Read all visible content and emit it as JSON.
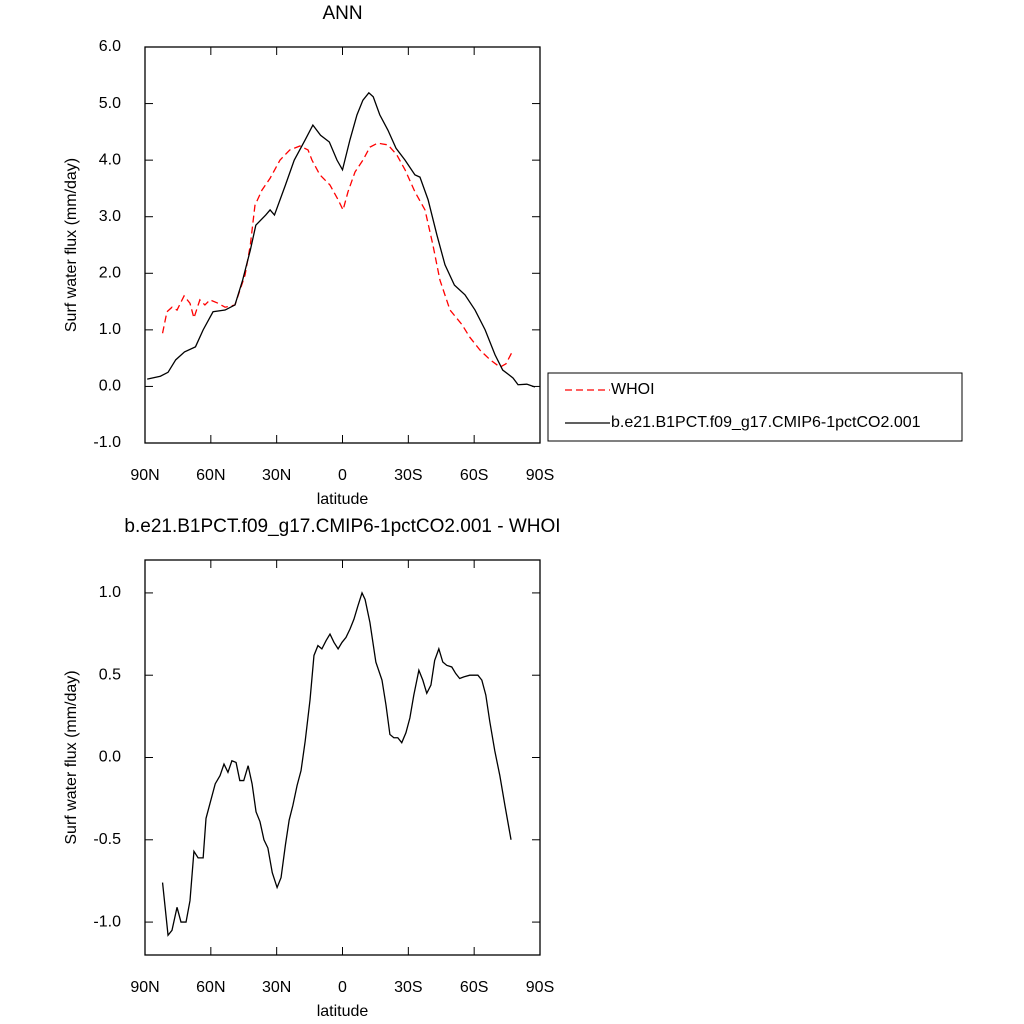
{
  "chart_data": [
    {
      "type": "line",
      "title": "ANN",
      "xlabel": "latitude",
      "ylabel": "Surf water flux (mm/day)",
      "xlim": [
        90,
        -90
      ],
      "xticks": [
        {
          "value": 90,
          "label": "90N"
        },
        {
          "value": 60,
          "label": "60N"
        },
        {
          "value": 30,
          "label": "30N"
        },
        0,
        {
          "value": -30,
          "label": "30S"
        },
        {
          "value": -60,
          "label": "60S"
        },
        {
          "value": -90,
          "label": "90S"
        }
      ],
      "ylim": [
        -1,
        6
      ],
      "yticks": [
        {
          "value": 6,
          "label": "6.0"
        },
        {
          "value": 5,
          "label": "5.0"
        },
        {
          "value": 4,
          "label": "4.0"
        },
        {
          "value": 3,
          "label": "3.0"
        },
        {
          "value": 2,
          "label": "2.0"
        },
        {
          "value": 1,
          "label": "1.0"
        },
        {
          "value": 0,
          "label": "0.0"
        },
        {
          "value": -1,
          "label": "-1.0"
        }
      ],
      "legend": "right",
      "series": [
        {
          "name": "WHOI",
          "color": "#ff0000",
          "dash": "dashed",
          "x": [
            82,
            80,
            77.7,
            75.4,
            72.2,
            69.5,
            67.7,
            65,
            62.7,
            60.4,
            56.7,
            53.5,
            49,
            44.4,
            42,
            39.9,
            36.7,
            33,
            28.5,
            24,
            19.4,
            15.7,
            13.9,
            10.3,
            5.7,
            2,
            -0.25,
            -2.5,
            -5.7,
            -9.3,
            -12.5,
            -16,
            -20.7,
            -24.8,
            -28.5,
            -33,
            -37.6,
            -41.2,
            -44.4,
            -49,
            -54.5,
            -58,
            -62.7,
            -67.3,
            -71.8,
            -74.5,
            -77.3
          ],
          "values": [
            0.94,
            1.32,
            1.4,
            1.35,
            1.6,
            1.47,
            1.21,
            1.53,
            1.44,
            1.53,
            1.47,
            1.4,
            1.44,
            1.97,
            2.5,
            3.2,
            3.47,
            3.68,
            4.0,
            4.18,
            4.25,
            4.18,
            4.0,
            3.74,
            3.56,
            3.3,
            3.12,
            3.44,
            3.79,
            4.0,
            4.23,
            4.3,
            4.27,
            4.09,
            3.83,
            3.44,
            3.12,
            2.5,
            1.88,
            1.35,
            1.09,
            0.87,
            0.64,
            0.47,
            0.34,
            0.4,
            0.61
          ]
        },
        {
          "name": "b.e21.B1PCT.f09_g17.CMIP6-1pctCO2.001",
          "color": "#000000",
          "dash": "solid",
          "x": [
            89,
            83,
            79.5,
            76,
            72,
            67,
            63.5,
            59,
            53.5,
            49,
            45.5,
            42,
            39.5,
            35,
            33,
            31,
            26,
            22,
            17,
            13.5,
            10,
            6,
            2.5,
            0,
            -3.4,
            -6.6,
            -9.3,
            -12,
            -14,
            -17,
            -20.7,
            -24.4,
            -28.5,
            -33,
            -35.3,
            -39,
            -43,
            -46.7,
            -51,
            -55.8,
            -60.4,
            -65,
            -69.5,
            -73,
            -77.7,
            -80,
            -84,
            -87.7
          ],
          "values": [
            0.13,
            0.18,
            0.25,
            0.47,
            0.61,
            0.7,
            1.0,
            1.32,
            1.35,
            1.44,
            1.88,
            2.41,
            2.85,
            3.03,
            3.12,
            3.03,
            3.56,
            4.0,
            4.36,
            4.62,
            4.44,
            4.32,
            4.0,
            3.83,
            4.36,
            4.8,
            5.06,
            5.19,
            5.12,
            4.8,
            4.53,
            4.21,
            4.0,
            3.74,
            3.7,
            3.3,
            2.68,
            2.15,
            1.79,
            1.62,
            1.35,
            1.0,
            0.56,
            0.29,
            0.15,
            0.03,
            0.04,
            -0.01
          ]
        }
      ]
    },
    {
      "type": "line",
      "title": "b.e21.B1PCT.f09_g17.CMIP6-1pctCO2.001 - WHOI",
      "xlabel": "latitude",
      "ylabel": "Surf water flux (mm/day)",
      "xlim": [
        90,
        -90
      ],
      "xticks": [
        {
          "value": 90,
          "label": "90N"
        },
        {
          "value": 60,
          "label": "60N"
        },
        {
          "value": 30,
          "label": "30N"
        },
        0,
        {
          "value": -30,
          "label": "30S"
        },
        {
          "value": -60,
          "label": "60S"
        },
        {
          "value": -90,
          "label": "90S"
        }
      ],
      "ylim": [
        -1.2,
        1.2
      ],
      "yticks": [
        {
          "value": 1,
          "label": "1.0"
        },
        0.5,
        {
          "value": 0,
          "label": "0.0"
        },
        -0.5,
        {
          "value": -1,
          "label": "-1.0"
        }
      ],
      "series": [
        {
          "color": "#000000",
          "dash": "solid",
          "x": [
            82,
            79.5,
            77.7,
            75.4,
            73.6,
            71.3,
            69.5,
            67.7,
            65.8,
            63.5,
            62.2,
            60.4,
            58,
            55.8,
            54,
            52.2,
            50.4,
            48.5,
            46.8,
            45,
            43,
            41.2,
            39.4,
            37.6,
            35.8,
            34,
            32,
            29.8,
            28,
            26,
            24.3,
            22.6,
            20.7,
            18.9,
            17,
            14.8,
            13,
            11.2,
            9.4,
            7.5,
            5.7,
            3.9,
            2,
            0.2,
            -1.6,
            -3.4,
            -5.2,
            -7,
            -8.9,
            -10.3,
            -12.5,
            -15.2,
            -18,
            -19.8,
            -21.6,
            -23.4,
            -25.2,
            -27,
            -28.9,
            -30.7,
            -32.5,
            -34.8,
            -36.6,
            -38.4,
            -40.3,
            -42,
            -43.9,
            -45.7,
            -47.5,
            -49.8,
            -51.6,
            -53.4,
            -55.3,
            -58,
            -61.7,
            -63.5,
            -65.3,
            -67.1,
            -69.4,
            -71.7,
            -74,
            -76.8
          ],
          "values": [
            -0.76,
            -1.08,
            -1.05,
            -0.91,
            -1.0,
            -1.0,
            -0.87,
            -0.57,
            -0.61,
            -0.61,
            -0.37,
            -0.28,
            -0.16,
            -0.11,
            -0.04,
            -0.09,
            -0.02,
            -0.03,
            -0.14,
            -0.14,
            -0.05,
            -0.16,
            -0.33,
            -0.39,
            -0.5,
            -0.55,
            -0.7,
            -0.79,
            -0.73,
            -0.53,
            -0.38,
            -0.29,
            -0.17,
            -0.08,
            0.1,
            0.35,
            0.62,
            0.68,
            0.66,
            0.71,
            0.75,
            0.7,
            0.66,
            0.7,
            0.73,
            0.78,
            0.84,
            0.92,
            1.0,
            0.96,
            0.82,
            0.58,
            0.47,
            0.32,
            0.14,
            0.12,
            0.12,
            0.09,
            0.15,
            0.24,
            0.38,
            0.53,
            0.47,
            0.39,
            0.44,
            0.59,
            0.66,
            0.58,
            0.56,
            0.55,
            0.51,
            0.48,
            0.49,
            0.5,
            0.5,
            0.47,
            0.38,
            0.22,
            0.04,
            -0.11,
            -0.29,
            -0.5
          ]
        }
      ]
    }
  ]
}
